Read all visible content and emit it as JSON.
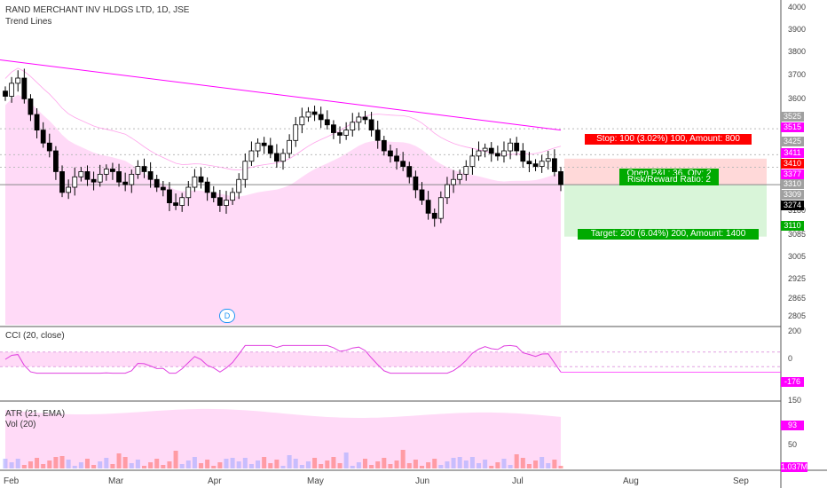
{
  "header": {
    "title": "RAND MERCHANT INV HLDGS LTD, 1D, JSE",
    "indicator": "Trend Lines"
  },
  "cci": {
    "label": "CCI (20, close)",
    "last": "-176",
    "ticks": [
      "200",
      "0",
      "-200"
    ]
  },
  "atr": {
    "label": "ATR (21, EMA)",
    "vol_label": "Vol (20)",
    "atr_last": "93",
    "vol_last": "1.037M",
    "ticks": [
      "150",
      "50"
    ]
  },
  "price_axis": [
    "4000",
    "3900",
    "3800",
    "3700",
    "3600",
    "3525",
    "3515",
    "3425",
    "3411",
    "3410",
    "3377",
    "3310",
    "3309",
    "3274",
    "3180",
    "3110",
    "3085",
    "3005",
    "2925",
    "2865",
    "2805"
  ],
  "price_tags": {
    "t3525": "3525",
    "t3515": "3515",
    "t3425": "3425",
    "t3411": "3411",
    "t3410": "3410",
    "t3377": "3377",
    "t3310": "3310",
    "t3309": "3309",
    "t3274": "3274",
    "t3110": "3110"
  },
  "time_axis": [
    "Feb",
    "Mar",
    "Apr",
    "May",
    "Jun",
    "Jul",
    "Aug",
    "Sep"
  ],
  "trade": {
    "stop": "Stop: 100 (3.02%) 100, Amount: 800",
    "open_pl": "Open P&L: 36, Qty: 2",
    "risk_reward": "Risk/Reward Ratio: 2",
    "target": "Target: 200 (6.04%) 200, Amount: 1400"
  },
  "marker": "D",
  "colors": {
    "bull": "#ffffff",
    "bear": "#000000",
    "pink": "#ff00ff",
    "stop": "#ff0000",
    "target": "#00aa00",
    "gray": "#a0a0a0"
  },
  "chart_data": {
    "type": "candlestick",
    "title": "RAND MERCHANT INV HLDGS LTD, 1D, JSE",
    "price_range": [
      2780,
      4030
    ],
    "series": [
      {
        "name": "Price",
        "type": "ohlc",
        "approx_close": [
          3650,
          3700,
          3720,
          3640,
          3580,
          3520,
          3470,
          3440,
          3360,
          3280,
          3300,
          3340,
          3360,
          3330,
          3320,
          3350,
          3370,
          3360,
          3320,
          3310,
          3350,
          3380,
          3360,
          3330,
          3300,
          3290,
          3240,
          3230,
          3260,
          3300,
          3340,
          3320,
          3280,
          3260,
          3230,
          3250,
          3280,
          3330,
          3400,
          3440,
          3470,
          3460,
          3430,
          3400,
          3430,
          3480,
          3540,
          3570,
          3590,
          3580,
          3560,
          3540,
          3510,
          3500,
          3520,
          3550,
          3570,
          3560,
          3520,
          3480,
          3440,
          3420,
          3400,
          3380,
          3340,
          3290,
          3250,
          3200,
          3180,
          3260,
          3310,
          3330,
          3350,
          3380,
          3420,
          3440,
          3450,
          3430,
          3420,
          3440,
          3470,
          3440,
          3400,
          3390,
          3380,
          3400,
          3410,
          3360,
          3310
        ]
      },
      {
        "name": "Trend Lines",
        "type": "line",
        "start": 3790,
        "end": 3520
      },
      {
        "name": "CCI",
        "type": "line",
        "range": [
          -200,
          200
        ],
        "last": -176
      },
      {
        "name": "ATR",
        "type": "area",
        "last": 93
      },
      {
        "name": "Vol",
        "type": "bar",
        "last": "1.037M"
      }
    ],
    "trade_levels": {
      "entry": 3310,
      "stop": 3410,
      "target": 3110,
      "stop_pct": 3.02,
      "target_pct": 6.04
    },
    "x_categories": [
      "Feb",
      "Mar",
      "Apr",
      "May",
      "Jun",
      "Jul",
      "Aug",
      "Sep"
    ]
  }
}
